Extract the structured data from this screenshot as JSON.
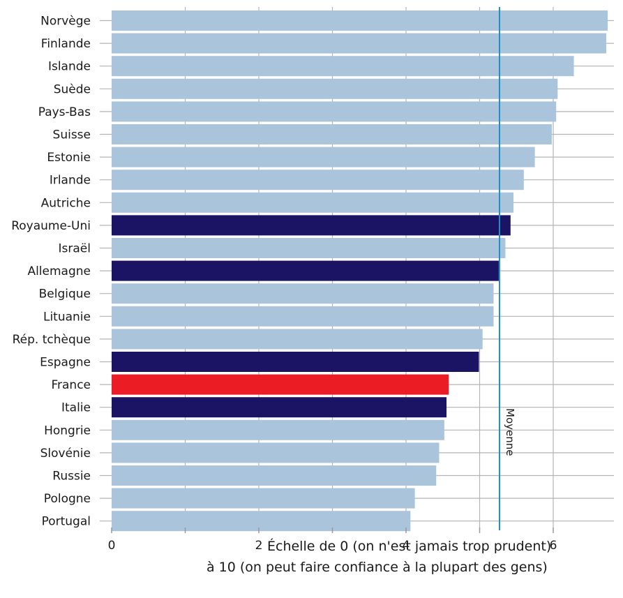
{
  "chart_data": {
    "type": "bar",
    "orientation": "horizontal",
    "categories": [
      "Norvège",
      "Finlande",
      "Islande",
      "Suède",
      "Pays-Bas",
      "Suisse",
      "Estonie",
      "Irlande",
      "Autriche",
      "Royaume-Uni",
      "Israël",
      "Allemagne",
      "Belgique",
      "Lituanie",
      "Rép. tchèque",
      "Espagne",
      "France",
      "Italie",
      "Hongrie",
      "Slovénie",
      "Russie",
      "Pologne",
      "Portugal"
    ],
    "values": [
      6.74,
      6.72,
      6.28,
      6.06,
      6.04,
      5.98,
      5.75,
      5.6,
      5.46,
      5.42,
      5.35,
      5.26,
      5.19,
      5.19,
      5.04,
      4.99,
      4.58,
      4.55,
      4.52,
      4.45,
      4.41,
      4.12,
      4.06
    ],
    "colors": [
      "#a9c4db",
      "#a9c4db",
      "#a9c4db",
      "#a9c4db",
      "#a9c4db",
      "#a9c4db",
      "#a9c4db",
      "#a9c4db",
      "#a9c4db",
      "#1b1464",
      "#a9c4db",
      "#1b1464",
      "#a9c4db",
      "#a9c4db",
      "#a9c4db",
      "#1b1464",
      "#ec1c24",
      "#1b1464",
      "#a9c4db",
      "#a9c4db",
      "#a9c4db",
      "#a9c4db",
      "#a9c4db"
    ],
    "xticks": [
      0,
      2,
      4,
      6
    ],
    "xlim": [
      0,
      6.8
    ],
    "mean": {
      "value": 5.27,
      "label": "Moyenne",
      "color": "#1f8fc9"
    },
    "xlabel_line1": "Échelle de 0 (on n'est jamais trop prudent)",
    "xlabel_line2": "à 10 (on peut faire confiance à la plupart des gens)",
    "grid": true,
    "grid_color": "#b3b3b3",
    "tick_color": "#999999",
    "label_color": "#1a1a1a",
    "xlabel_color": "#1a1a1a"
  }
}
